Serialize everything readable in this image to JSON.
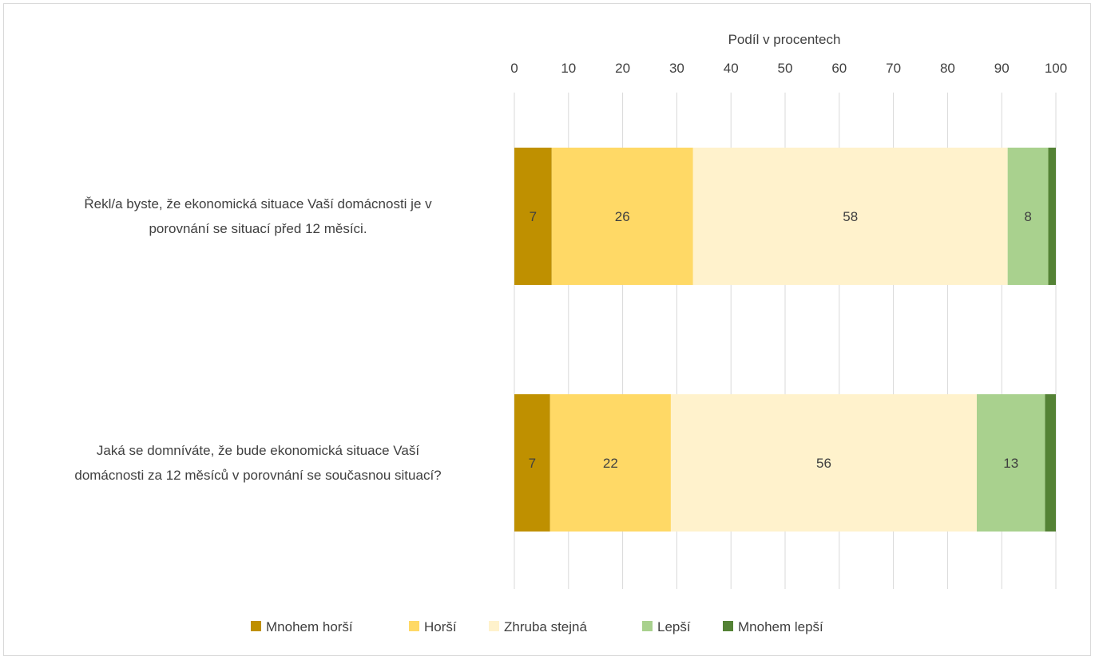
{
  "chart_data": {
    "type": "bar",
    "orientation": "horizontal",
    "stacked": true,
    "title": "",
    "xlabel": "Podíl v procentech",
    "xlim": [
      0,
      100
    ],
    "x_ticks": [
      "0",
      "10",
      "20",
      "30",
      "40",
      "50",
      "60",
      "70",
      "80",
      "90",
      "100"
    ],
    "grid": "vertical",
    "legend_position": "bottom",
    "categories": [
      "Řekl/a byste, že ekonomická situace Vaší domácnosti je v porovnání se situací před 12 měsíci.",
      "Jaká se domníváte, že bude ekonomická situace Vaší domácnosti za 12 měsíců v porovnání se současnou situací?"
    ],
    "category_lines": [
      [
        "Řekl/a byste, že ekonomická situace Vaší domácnosti je v",
        "porovnání se situací před 12 měsíci."
      ],
      [
        "Jaká se domníváte, že bude ekonomická situace Vaší",
        "domácnosti za 12 měsíců v porovnání se současnou situací?"
      ]
    ],
    "series": [
      {
        "name": "Mnohem horší",
        "color": "#bf9000",
        "values": [
          6.9,
          6.6
        ],
        "labels": [
          "7",
          "7"
        ]
      },
      {
        "name": "Horší",
        "color": "#ffd966",
        "values": [
          26.1,
          22.3
        ],
        "labels": [
          "26",
          "22"
        ]
      },
      {
        "name": "Zhruba stejná",
        "color": "#fff2cc",
        "values": [
          58.1,
          56.5
        ],
        "labels": [
          "58",
          "56"
        ]
      },
      {
        "name": "Lepší",
        "color": "#a9d18e",
        "values": [
          7.5,
          12.6
        ],
        "labels": [
          "8",
          "13"
        ]
      },
      {
        "name": "Mnohem lepší",
        "color": "#548235",
        "values": [
          1.4,
          2.0
        ],
        "labels": [
          "",
          ""
        ]
      }
    ]
  }
}
